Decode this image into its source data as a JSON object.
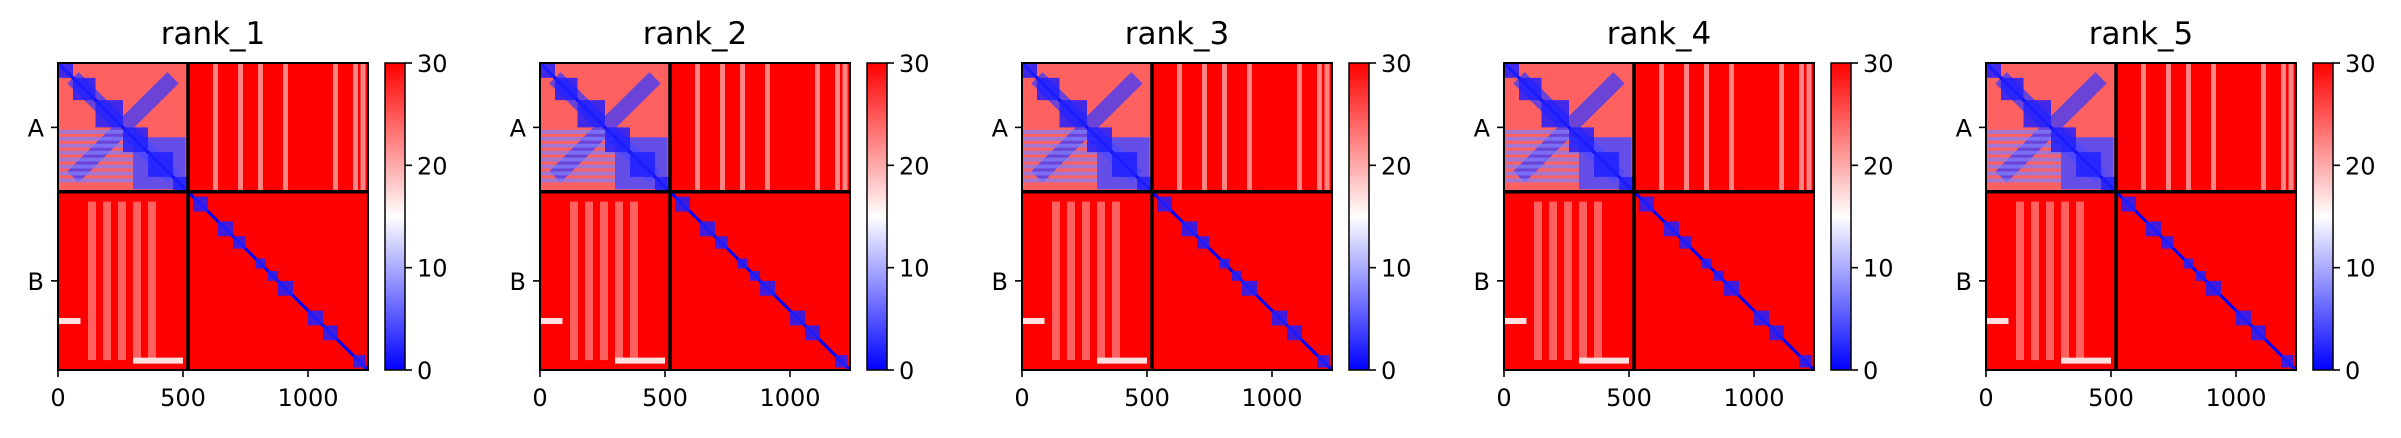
{
  "chart_data": {
    "type": "heatmap",
    "colormap": "bwr",
    "colorbar": {
      "min": 0,
      "max": 30,
      "ticks": [
        0,
        10,
        20,
        30
      ],
      "colors": [
        "#0000ff",
        "#ffffff",
        "#ff0000"
      ]
    },
    "x_range": [
      0,
      1240
    ],
    "x_ticks": [
      0,
      500,
      1000
    ],
    "chain_boundary": 520,
    "chain_labels": [
      "A",
      "B"
    ],
    "grid": false,
    "panels": [
      {
        "title": "rank_1"
      },
      {
        "title": "rank_2"
      },
      {
        "title": "rank_3"
      },
      {
        "title": "rank_4"
      },
      {
        "title": "rank_5"
      }
    ]
  }
}
